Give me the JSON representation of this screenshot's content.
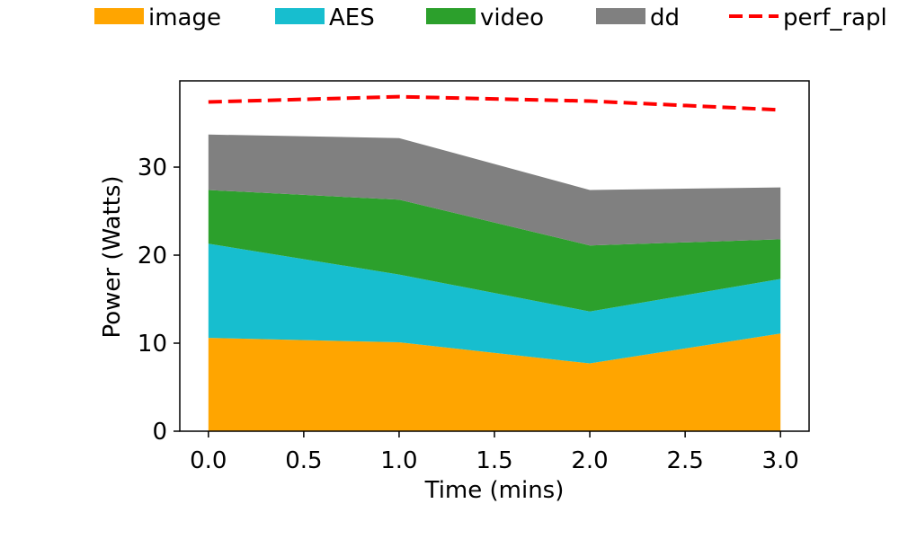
{
  "chart_data": {
    "type": "area",
    "stacked": true,
    "title": "",
    "xlabel": "Time (mins)",
    "ylabel": "Power (Watts)",
    "x": [
      0,
      1,
      2,
      3
    ],
    "xlim": [
      -0.15,
      3.15
    ],
    "ylim": [
      0,
      39.8
    ],
    "xticks": [
      "0.0",
      "0.5",
      "1.0",
      "1.5",
      "2.0",
      "2.5",
      "3.0"
    ],
    "yticks": [
      "0",
      "10",
      "20",
      "30"
    ],
    "grid": false,
    "legend": {
      "placement": "top",
      "entries": [
        "image",
        "AES",
        "video",
        "dd",
        "perf_rapl"
      ]
    },
    "series": [
      {
        "name": "image",
        "type": "area",
        "values": [
          10.6,
          10.1,
          7.7,
          11.1
        ]
      },
      {
        "name": "AES",
        "type": "area",
        "values": [
          10.7,
          7.7,
          5.9,
          6.2
        ]
      },
      {
        "name": "video",
        "type": "area",
        "values": [
          6.1,
          8.5,
          7.5,
          4.5
        ]
      },
      {
        "name": "dd",
        "type": "area",
        "values": [
          6.3,
          7.0,
          6.3,
          5.9
        ]
      },
      {
        "name": "perf_rapl",
        "type": "line",
        "style": "dashed",
        "values": [
          37.4,
          38.0,
          37.5,
          36.5
        ]
      }
    ],
    "colors": {
      "image": "#FFA500",
      "AES": "#17BECF",
      "video": "#2CA02C",
      "dd": "#808080",
      "perf_rapl": "#FF0000"
    }
  }
}
